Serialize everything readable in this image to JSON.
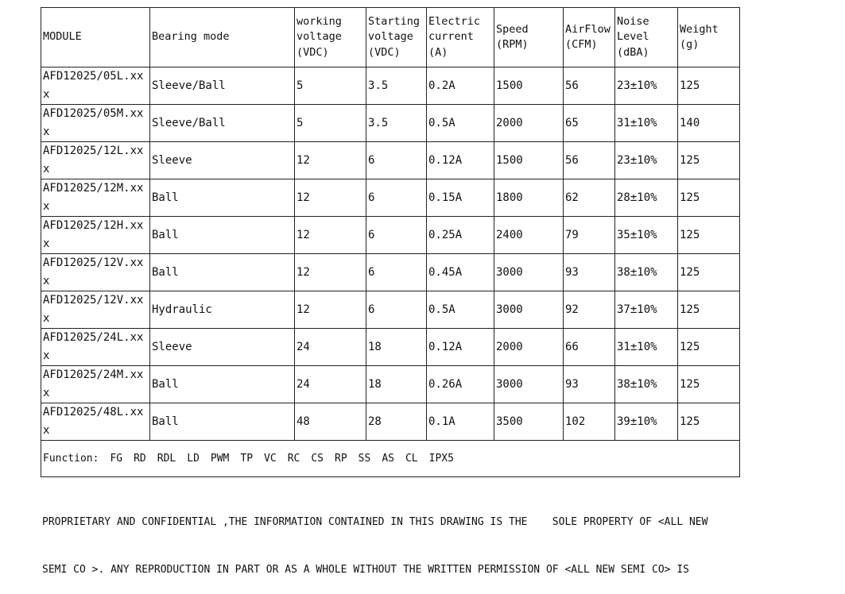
{
  "headers": {
    "module": "MODULE",
    "bearing": "Bearing mode",
    "working_voltage": [
      "working",
      "voltage",
      "(VDC)"
    ],
    "starting_voltage": [
      "Starting",
      "voltage",
      "(VDC)"
    ],
    "current": [
      "Electric",
      "current",
      "(A)"
    ],
    "speed": [
      "Speed",
      "(RPM)"
    ],
    "airflow": [
      "AirFlow",
      "(CFM)"
    ],
    "noise": [
      "Noise",
      "Level",
      "(dBA)"
    ],
    "weight": [
      "Weight",
      "(g)"
    ]
  },
  "rows": [
    {
      "model": "AFD12025/05L.xxx",
      "bearing": "Sleeve/Ball",
      "wv": "5",
      "sv": "3.5",
      "cur": "0.2A",
      "rpm": "1500",
      "cfm": "56",
      "noise": "23±10%",
      "weight": "125"
    },
    {
      "model": "AFD12025/05M.xxx",
      "bearing": "Sleeve/Ball",
      "wv": "5",
      "sv": "3.5",
      "cur": "0.5A",
      "rpm": "2000",
      "cfm": "65",
      "noise": "31±10%",
      "weight": "140"
    },
    {
      "model": "AFD12025/12L.xxx",
      "bearing": "Sleeve",
      "wv": "12",
      "sv": "6",
      "cur": "0.12A",
      "rpm": "1500",
      "cfm": "56",
      "noise": "23±10%",
      "weight": "125"
    },
    {
      "model": "AFD12025/12M.xxx",
      "bearing": "Ball",
      "wv": "12",
      "sv": "6",
      "cur": "0.15A",
      "rpm": "1800",
      "cfm": "62",
      "noise": "28±10%",
      "weight": "125"
    },
    {
      "model": "AFD12025/12H.xxx",
      "bearing": "Ball",
      "wv": "12",
      "sv": "6",
      "cur": "0.25A",
      "rpm": "2400",
      "cfm": "79",
      "noise": "35±10%",
      "weight": "125"
    },
    {
      "model": "AFD12025/12V.xxx",
      "bearing": "Ball",
      "wv": "12",
      "sv": "6",
      "cur": "0.45A",
      "rpm": "3000",
      "cfm": "93",
      "noise": "38±10%",
      "weight": "125"
    },
    {
      "model": "AFD12025/12V.xxx",
      "bearing": "Hydraulic",
      "wv": "12",
      "sv": "6",
      "cur": "0.5A",
      "rpm": "3000",
      "cfm": "92",
      "noise": "37±10%",
      "weight": "125"
    },
    {
      "model": "AFD12025/24L.xxx",
      "bearing": "Sleeve",
      "wv": "24",
      "sv": "18",
      "cur": "0.12A",
      "rpm": "2000",
      "cfm": "66",
      "noise": "31±10%",
      "weight": "125"
    },
    {
      "model": "AFD12025/24M.xxx",
      "bearing": "Ball",
      "wv": "24",
      "sv": "18",
      "cur": "0.26A",
      "rpm": "3000",
      "cfm": "93",
      "noise": "38±10%",
      "weight": "125"
    },
    {
      "model": "AFD12025/48L.xxx",
      "bearing": "Ball",
      "wv": "48",
      "sv": "28",
      "cur": "0.1A",
      "rpm": "3500",
      "cfm": "102",
      "noise": "39±10%",
      "weight": "125"
    }
  ],
  "function": {
    "label": "Function:",
    "items": [
      "FG",
      "RD",
      "RDL",
      "LD",
      "PWM",
      "TP",
      "VC",
      "RC",
      "CS",
      "RP",
      "SS",
      "AS",
      "CL",
      "IPX5"
    ]
  },
  "notice": [
    "PROPRIETARY AND CONFIDENTIAL ,THE INFORMATION CONTAINED IN THIS DRAWING IS THE    SOLE PROPERTY OF <ALL NEW",
    "SEMI CO >. ANY REPRODUCTION IN PART OR AS A WHOLE WITHOUT THE WRITTEN PERMISSION OF <ALL NEW SEMI CO> IS"
  ]
}
